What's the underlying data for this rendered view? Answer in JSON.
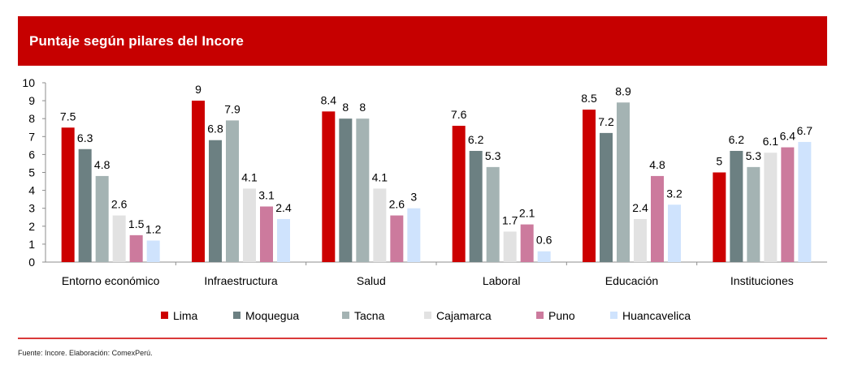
{
  "header": {
    "title": "Puntaje según pilares del Incore"
  },
  "footer": {
    "source": "Fuente: Incore. Elaboración: ComexPerú."
  },
  "colors": {
    "header_bg": "#c60000",
    "Lima": "#cc0000",
    "Moquegua": "#6c8082",
    "Tacna": "#a4b3b3",
    "Cajamarca": "#e2e2e2",
    "Puno": "#cc7a9d",
    "Huancavelica": "#cfe3fd"
  },
  "chart_data": {
    "type": "bar",
    "title": "Puntaje según pilares del Incore",
    "xlabel": "",
    "ylabel": "",
    "ylim": [
      0,
      10
    ],
    "yticks": [
      0,
      1,
      2,
      3,
      4,
      5,
      6,
      7,
      8,
      9,
      10
    ],
    "grid": false,
    "legend_position": "bottom",
    "categories": [
      "Entorno económico",
      "Infraestructura",
      "Salud",
      "Laboral",
      "Educación",
      "Instituciones"
    ],
    "series": [
      {
        "name": "Lima",
        "color": "#cc0000",
        "values": [
          7.5,
          9,
          8.4,
          7.6,
          8.5,
          5
        ]
      },
      {
        "name": "Moquegua",
        "color": "#6c8082",
        "values": [
          6.3,
          6.8,
          8,
          6.2,
          7.2,
          6.2
        ]
      },
      {
        "name": "Tacna",
        "color": "#a4b3b3",
        "values": [
          4.8,
          7.9,
          8,
          5.3,
          8.9,
          5.3
        ]
      },
      {
        "name": "Cajamarca",
        "color": "#e2e2e2",
        "values": [
          2.6,
          4.1,
          4.1,
          1.7,
          2.4,
          6.1
        ]
      },
      {
        "name": "Puno",
        "color": "#cc7a9d",
        "values": [
          1.5,
          3.1,
          2.6,
          2.1,
          4.8,
          6.4
        ]
      },
      {
        "name": "Huancavelica",
        "color": "#cfe3fd",
        "values": [
          1.2,
          2.4,
          3,
          0.6,
          3.2,
          6.7
        ]
      }
    ]
  }
}
